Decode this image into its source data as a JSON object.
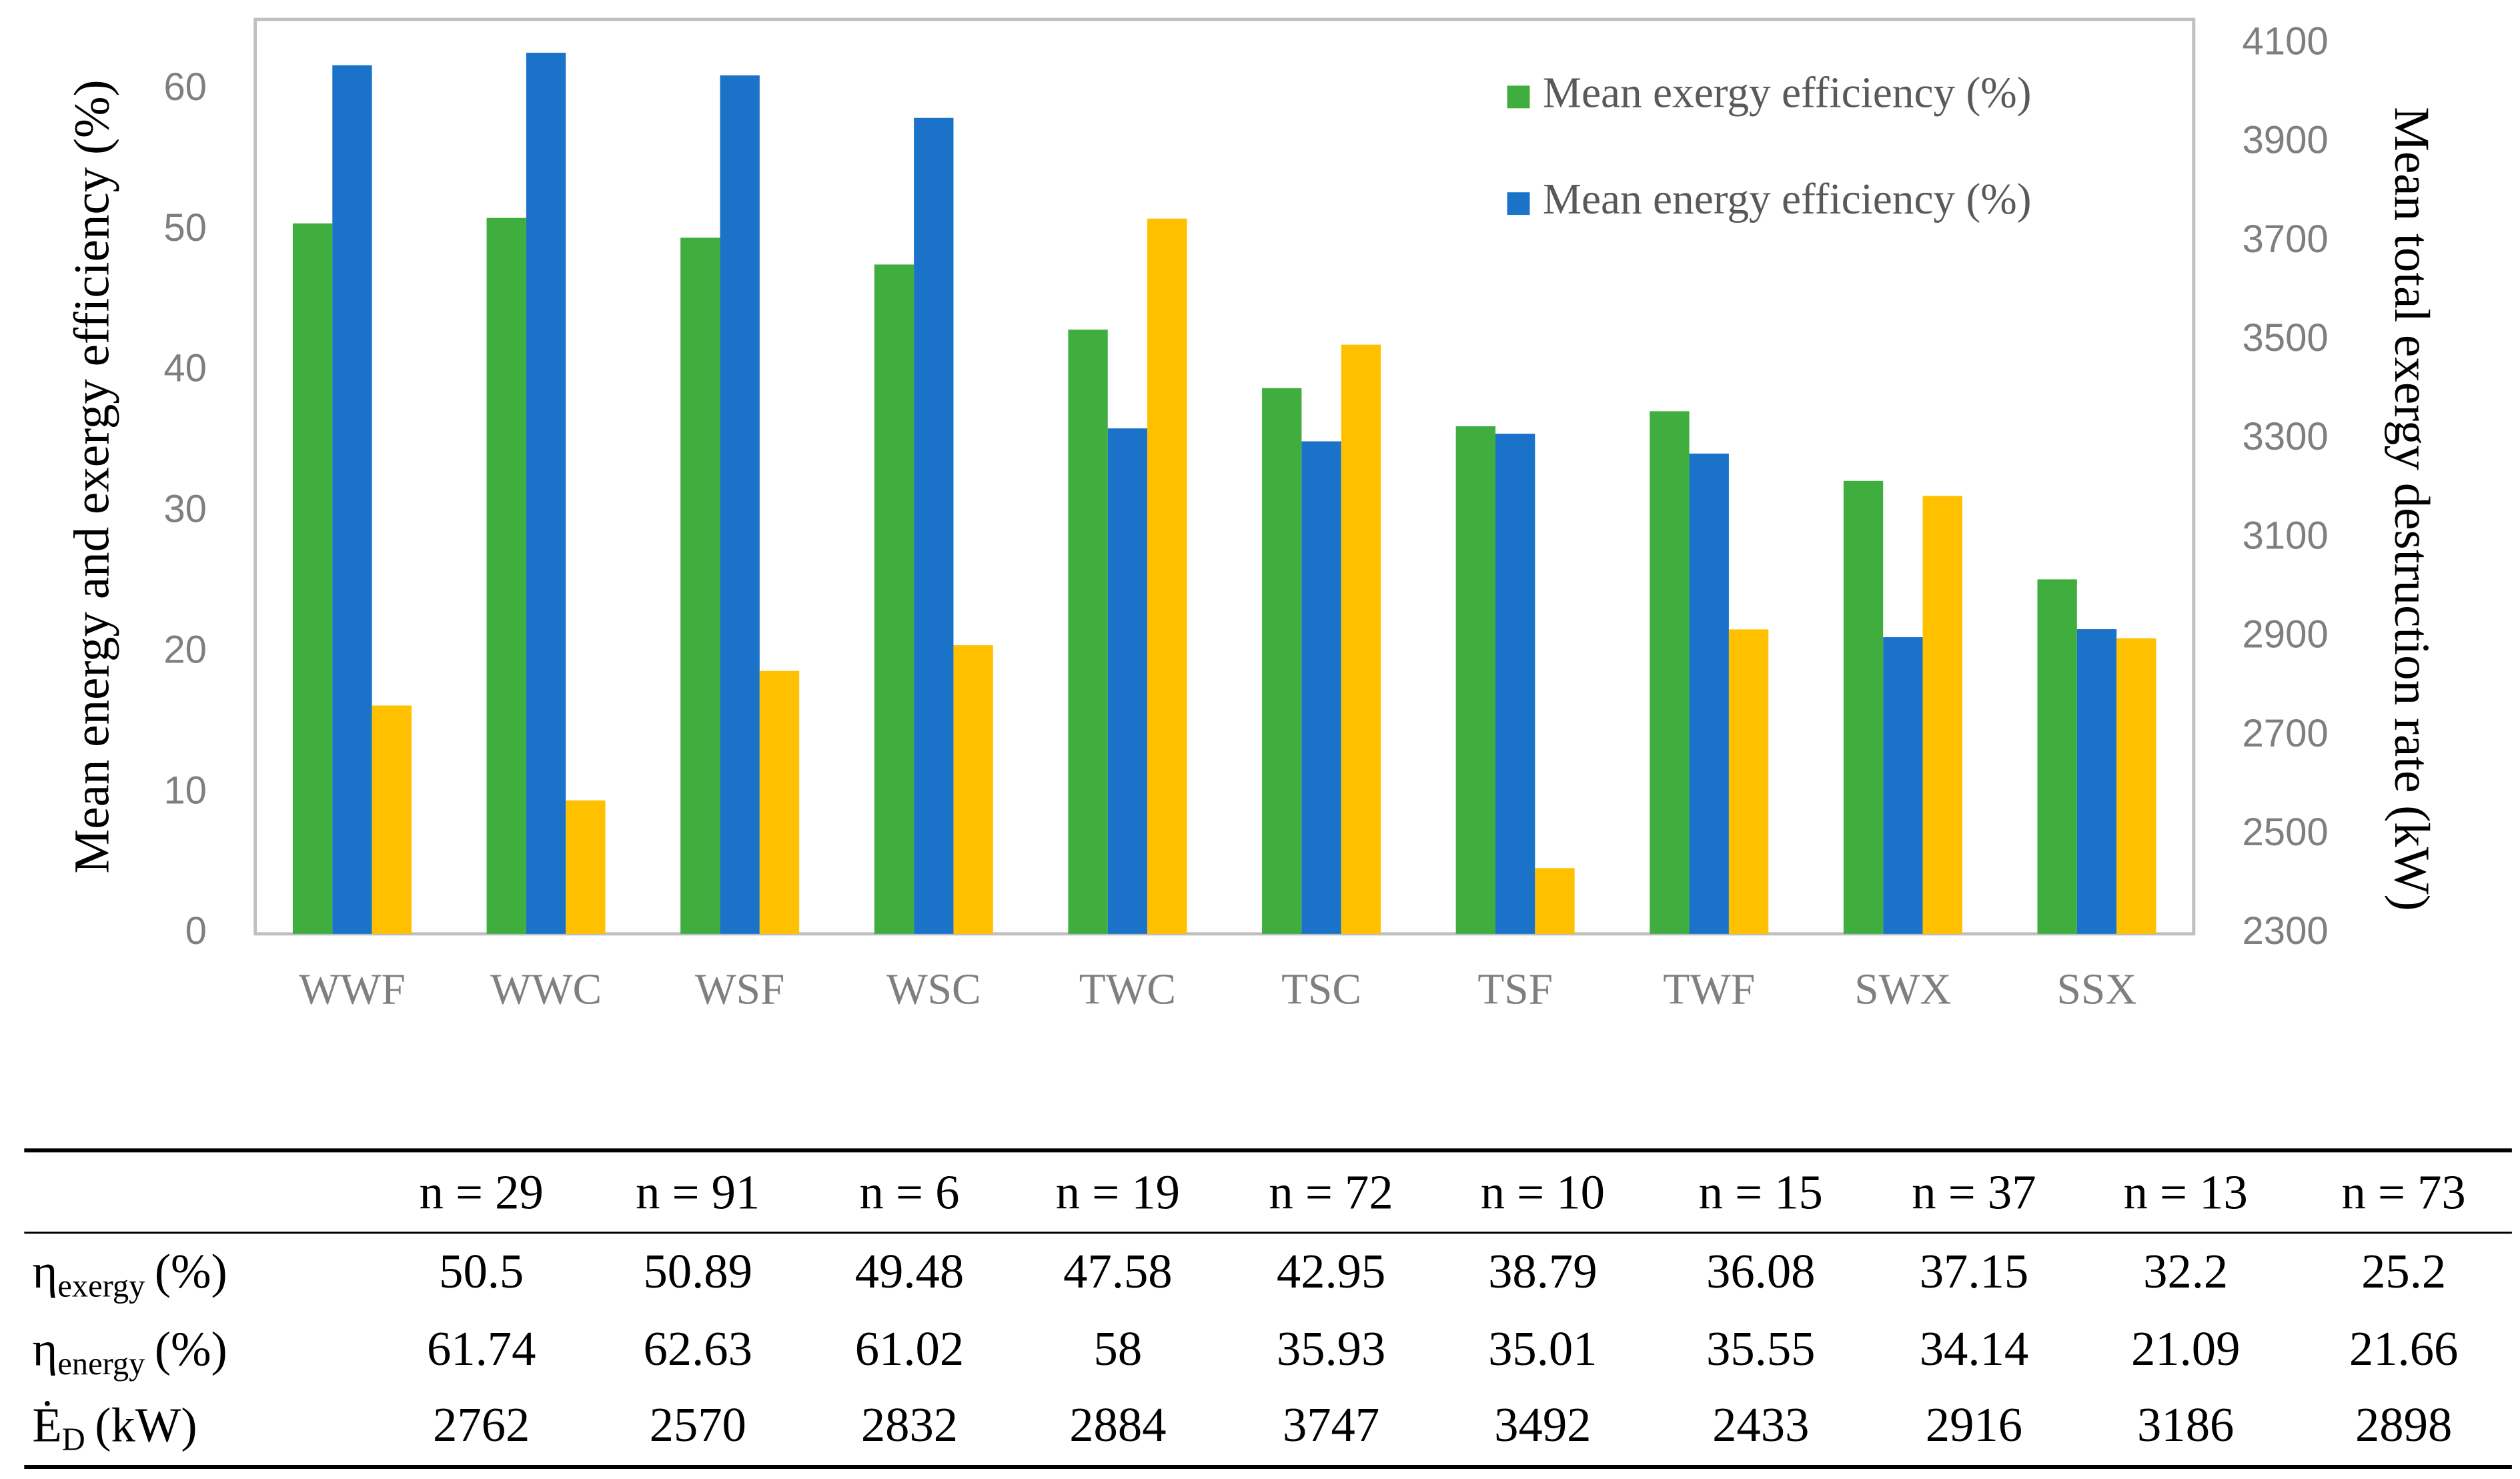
{
  "chart_data": {
    "type": "bar",
    "y_label": "Mean energy and exergy efficiency (%)",
    "y2_label": "Mean total exergy destruction rate (kW)",
    "categories": [
      "WWF",
      "WWC",
      "WSF",
      "WSC",
      "TWC",
      "TSC",
      "TSF",
      "TWF",
      "SWX",
      "SSX"
    ],
    "series": [
      {
        "name": "Mean exergy efficiency (%)",
        "color": "#3fae3f",
        "values": [
          50.5,
          50.89,
          49.48,
          47.58,
          42.95,
          38.79,
          36.08,
          37.15,
          32.2,
          25.2
        ]
      },
      {
        "name": "Mean energy efficiency (%)",
        "color": "#1a73c9",
        "values": [
          61.74,
          62.63,
          61.02,
          58,
          35.93,
          35.01,
          35.55,
          34.14,
          21.09,
          21.66
        ]
      },
      {
        "color": "#ffc000",
        "axis": "y2",
        "values": [
          2762,
          2570,
          2832,
          2884,
          3747,
          3492,
          2433,
          2916,
          3186,
          2898
        ]
      }
    ],
    "ylim": [
      0,
      65
    ],
    "yticks": [
      0,
      10,
      20,
      30,
      40,
      50,
      60
    ],
    "y2lim": [
      2300,
      4150
    ],
    "y2ticks": [
      2300,
      2500,
      2700,
      2900,
      3100,
      3300,
      3500,
      3700,
      3900,
      4100
    ],
    "grid": false,
    "legend": "top-right"
  },
  "table": {
    "header": [
      "n = 29",
      "n = 91",
      "n = 6",
      "n = 19",
      "n = 72",
      "n = 10",
      "n = 15",
      "n = 37",
      "n = 13",
      "n = 73"
    ],
    "rows": [
      {
        "label": {
          "symbol": "η",
          "sub": "exergy",
          "unit": "(%)"
        },
        "values": [
          50.5,
          50.89,
          49.48,
          47.58,
          42.95,
          38.79,
          36.08,
          37.15,
          32.2,
          25.2
        ]
      },
      {
        "label": {
          "symbol": "η",
          "sub": "energy",
          "unit": "(%)"
        },
        "values": [
          61.74,
          62.63,
          61.02,
          58,
          35.93,
          35.01,
          35.55,
          34.14,
          21.09,
          21.66
        ]
      },
      {
        "label": {
          "symbol": "Ė",
          "sub": "D",
          "unit": "(kW)"
        },
        "values": [
          2762,
          2570,
          2832,
          2884,
          3747,
          3492,
          2433,
          2916,
          3186,
          2898
        ]
      }
    ]
  }
}
